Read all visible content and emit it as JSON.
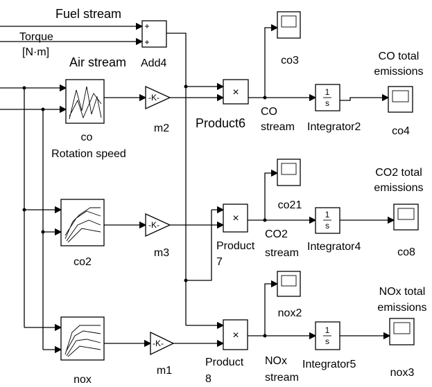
{
  "signals": {
    "fuel_stream": "Fuel stream",
    "torque": [
      "Torque",
      "[N·m]"
    ],
    "air_stream": "Air stream",
    "rotation_speed": "Rotation speed"
  },
  "blocks": {
    "add4": "Add4",
    "lookup_co": "co",
    "lookup_co2": "co2",
    "lookup_nox": "nox",
    "gain_m2": "m2",
    "gain_m3": "m3",
    "gain_m1": "m1",
    "product6": [
      "Product6"
    ],
    "product7": [
      "Product",
      "7"
    ],
    "product8": [
      "Product",
      "8"
    ],
    "integrator2": "Integrator2",
    "integrator4": "Integrator4",
    "integrator5": "Integrator5",
    "scope_co3": "co3",
    "scope_co21": "co21",
    "scope_nox2": "nox2",
    "scope_co4": "co4",
    "scope_co8": "co8",
    "scope_nox3": "nox3"
  },
  "streams": {
    "co": [
      "CO",
      "stream"
    ],
    "co2": [
      "CO2",
      "stream"
    ],
    "nox": [
      "NOx",
      "stream"
    ]
  },
  "totals": {
    "co": [
      "CO total",
      "emissions"
    ],
    "co2": [
      "CO2 total",
      "emissions"
    ],
    "nox": [
      "NOx total",
      "emissions"
    ]
  },
  "symbols": {
    "gain": "-K-",
    "product": "×",
    "integrator_num": "1",
    "integrator_den": "s"
  }
}
